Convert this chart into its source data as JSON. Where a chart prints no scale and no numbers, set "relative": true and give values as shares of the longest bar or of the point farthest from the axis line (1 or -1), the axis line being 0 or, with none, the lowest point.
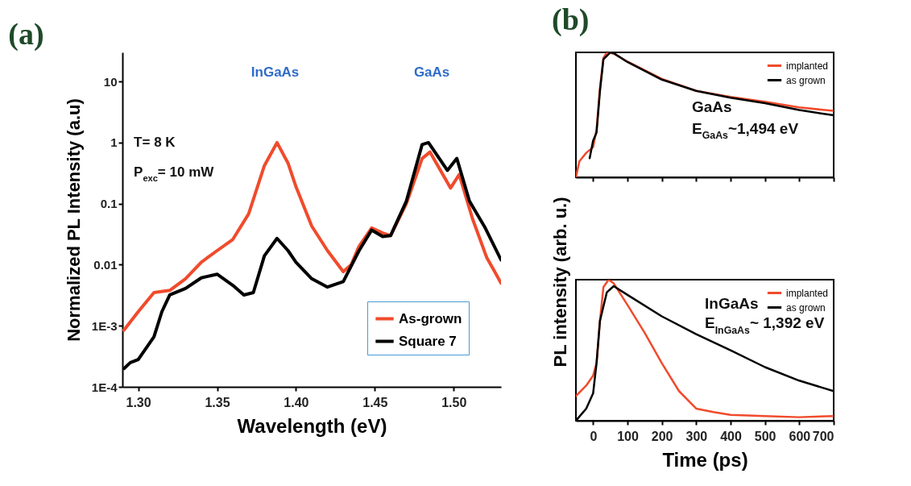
{
  "chart_data": [
    {
      "type": "line",
      "title": "(a)",
      "xlabel": "Wavelength (eV)",
      "ylabel": "Normalized PL Intensity (a.u)",
      "log": "y",
      "legend": "bottom right",
      "xlim": [
        1.29,
        1.53
      ],
      "ylim": [
        0.0001,
        30
      ],
      "xticks": [
        {
          "value": 1.3,
          "label": "1.30"
        },
        {
          "value": 1.35,
          "label": "1.35"
        },
        {
          "value": 1.4,
          "label": "1.40"
        },
        {
          "value": 1.45,
          "label": "1.45"
        },
        {
          "value": 1.5,
          "label": "1.50"
        }
      ],
      "yticks": [
        {
          "value": 0.0001,
          "label": "1E-4"
        },
        {
          "value": 0.001,
          "label": "1E-3"
        },
        0.01,
        0.1,
        1,
        10
      ],
      "annotations": [
        "InGaAs",
        "GaAs",
        "T= 8 K",
        "P$_{exc}$= 10 mW"
      ],
      "series": [
        {
          "name": "As-grown",
          "color": "#f04b2c",
          "x": [
            1.291,
            1.3,
            1.31,
            1.32,
            1.33,
            1.34,
            1.35,
            1.36,
            1.37,
            1.38,
            1.388,
            1.395,
            1.4,
            1.41,
            1.42,
            1.43,
            1.435,
            1.44,
            1.448,
            1.455,
            1.46,
            1.47,
            1.48,
            1.485,
            1.498,
            1.5035,
            1.512,
            1.521,
            1.526,
            1.53
          ],
          "values": [
            0.00085,
            0.0017,
            0.0035,
            0.0038,
            0.0059,
            0.011,
            0.017,
            0.026,
            0.068,
            0.42,
            1.0,
            0.46,
            0.19,
            0.043,
            0.017,
            0.0077,
            0.01,
            0.02,
            0.04,
            0.033,
            0.03,
            0.1,
            0.55,
            0.7,
            0.18,
            0.3,
            0.056,
            0.013,
            0.0077,
            0.005
          ]
        },
        {
          "name": "Square 7",
          "color": "#000000",
          "x": [
            1.291,
            1.295,
            1.3,
            1.31,
            1.315,
            1.32,
            1.33,
            1.34,
            1.35,
            1.36,
            1.367,
            1.373,
            1.38,
            1.388,
            1.395,
            1.4,
            1.41,
            1.42,
            1.43,
            1.44,
            1.448,
            1.455,
            1.46,
            1.47,
            1.48,
            1.484,
            1.496,
            1.502,
            1.51,
            1.52,
            1.53
          ],
          "values": [
            0.0002,
            0.00025,
            0.00028,
            0.00066,
            0.0017,
            0.0032,
            0.0041,
            0.0061,
            0.007,
            0.0046,
            0.0032,
            0.0035,
            0.014,
            0.027,
            0.017,
            0.011,
            0.0059,
            0.0043,
            0.0053,
            0.017,
            0.037,
            0.029,
            0.03,
            0.11,
            0.93,
            1.0,
            0.35,
            0.55,
            0.11,
            0.04,
            0.012
          ]
        }
      ]
    },
    {
      "type": "line",
      "title": "(b)",
      "relative": true,
      "legend": "top right",
      "tick_labels": false,
      "xlim": [
        -50,
        700
      ],
      "xticks": [
        0,
        100,
        200,
        300,
        400,
        500,
        600,
        700
      ],
      "annotations": [
        "GaAs",
        "E$_{GaAs}$~1,494 eV"
      ],
      "series": [
        {
          "name": "implanted",
          "color": "#f04b2c",
          "x": [
            -50,
            -40,
            -20,
            0,
            10,
            20,
            30,
            40,
            60,
            100,
            200,
            300,
            400,
            500,
            600,
            700
          ],
          "values": [
            0,
            0.127,
            0.196,
            0.241,
            0.384,
            0.719,
            0.955,
            1,
            0.99,
            0.926,
            0.788,
            0.692,
            0.643,
            0.605,
            0.559,
            0.532
          ]
        },
        {
          "name": "as grown",
          "color": "#000000",
          "x": [
            -10,
            0,
            10,
            20,
            30,
            50,
            60,
            100,
            200,
            300,
            400,
            500,
            600,
            700
          ],
          "values": [
            0.153,
            0.294,
            0.358,
            0.692,
            0.945,
            1,
            0.994,
            0.923,
            0.782,
            0.692,
            0.637,
            0.594,
            0.539,
            0.496
          ]
        }
      ]
    },
    {
      "type": "line",
      "xlabel": "Time (ps)",
      "ylabel": "PL intensity (arb. u.)",
      "relative": true,
      "legend": "top right",
      "tick_labels": "x",
      "xlim": [
        -50,
        700
      ],
      "xticks": [
        0,
        100,
        200,
        300,
        400,
        500,
        600,
        700
      ],
      "annotations": [
        "InGaAs",
        "E$_{InGaAs}$~ 1,392 eV"
      ],
      "series": [
        {
          "name": "implanted",
          "color": "#f04b2c",
          "x": [
            -50,
            -20,
            0,
            10,
            20,
            30,
            45,
            60,
            100,
            150,
            200,
            250,
            300,
            350,
            400,
            500,
            600,
            700
          ],
          "values": [
            0.175,
            0.249,
            0.32,
            0.408,
            0.709,
            0.947,
            1,
            0.974,
            0.821,
            0.624,
            0.408,
            0.21,
            0.086,
            0.062,
            0.042,
            0.033,
            0.025,
            0.033
          ]
        },
        {
          "name": "as grown",
          "color": "#000000",
          "x": [
            -50,
            -20,
            0,
            10,
            20,
            40,
            60,
            100,
            200,
            300,
            400,
            500,
            600,
            700
          ],
          "values": [
            0,
            0.086,
            0.194,
            0.408,
            0.709,
            0.911,
            0.954,
            0.892,
            0.74,
            0.613,
            0.499,
            0.38,
            0.284,
            0.21
          ]
        }
      ]
    }
  ]
}
